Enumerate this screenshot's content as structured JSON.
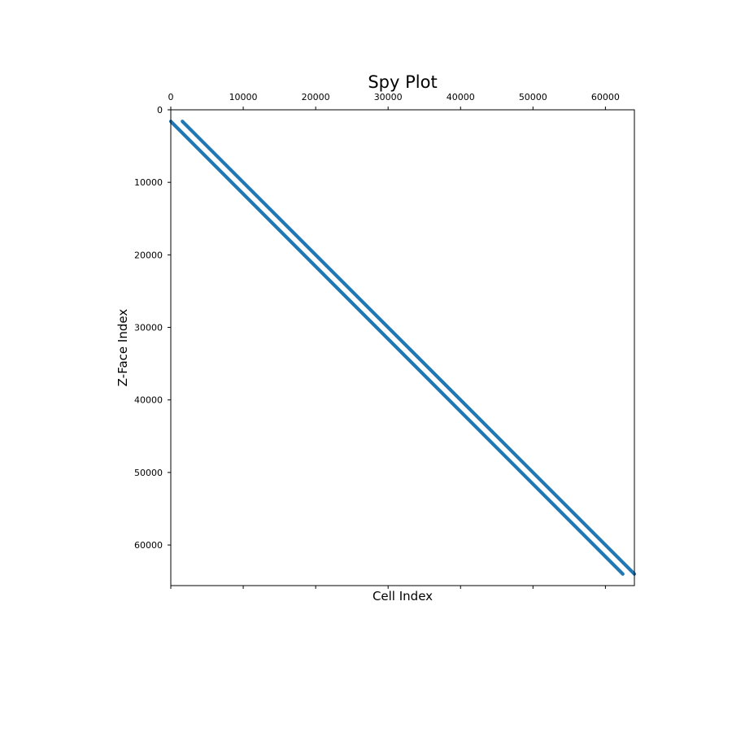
{
  "chart_data": {
    "type": "spy",
    "title": "Spy Plot",
    "xlabel": "Cell Index",
    "ylabel": "Z-Face Index",
    "xlim": [
      0,
      64000
    ],
    "ylim": [
      65600,
      0
    ],
    "x_ticks": [
      0,
      10000,
      20000,
      30000,
      40000,
      50000,
      60000
    ],
    "x_tick_labels": [
      "0",
      "10000",
      "20000",
      "30000",
      "40000",
      "50000",
      "60000"
    ],
    "y_ticks": [
      0,
      10000,
      20000,
      30000,
      40000,
      50000,
      60000
    ],
    "y_tick_labels": [
      "0",
      "10000",
      "20000",
      "30000",
      "40000",
      "50000",
      "60000"
    ],
    "x_ticks_position": "top",
    "grid": false,
    "marker_color": "#1f77b4",
    "series": [
      {
        "x": [
          0,
          62400
        ],
        "y": [
          1600,
          64000
        ]
      },
      {
        "x": [
          1600,
          64000
        ],
        "y": [
          1600,
          64000
        ]
      }
    ]
  }
}
